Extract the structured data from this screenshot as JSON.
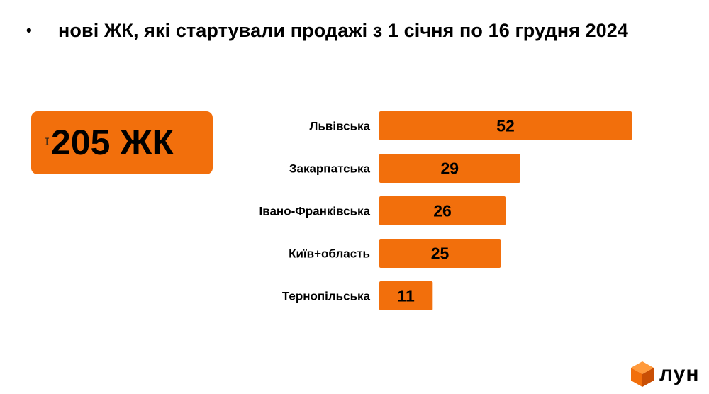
{
  "slide": {
    "bullet": "•",
    "title": "нові ЖК, які стартували продажі з 1 січня по 16 грудня 2024"
  },
  "summary": {
    "total_label": "205 ЖК"
  },
  "brand": {
    "logo_text": "лун",
    "icon": "cube-logo-icon",
    "accent_color": "#f26f0c"
  },
  "chart_data": {
    "type": "bar",
    "orientation": "horizontal",
    "categories": [
      "Львівська",
      "Закарпатська",
      "Івано-Франківська",
      "Київ+область",
      "Тернопільська"
    ],
    "values": [
      52,
      29,
      26,
      25,
      11
    ],
    "bar_color": "#f26f0c",
    "data_labels": true,
    "xlim": [
      0,
      52
    ]
  }
}
